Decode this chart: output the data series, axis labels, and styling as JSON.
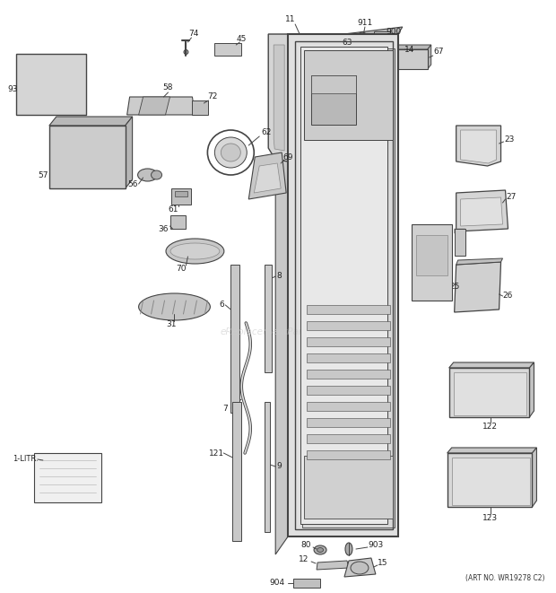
{
  "art_no": "(ART NO. WR19278 C2)",
  "watermark": "eReplacementParts.com",
  "bg_color": "#ffffff",
  "fig_width": 6.2,
  "fig_height": 6.61,
  "dpi": 100
}
